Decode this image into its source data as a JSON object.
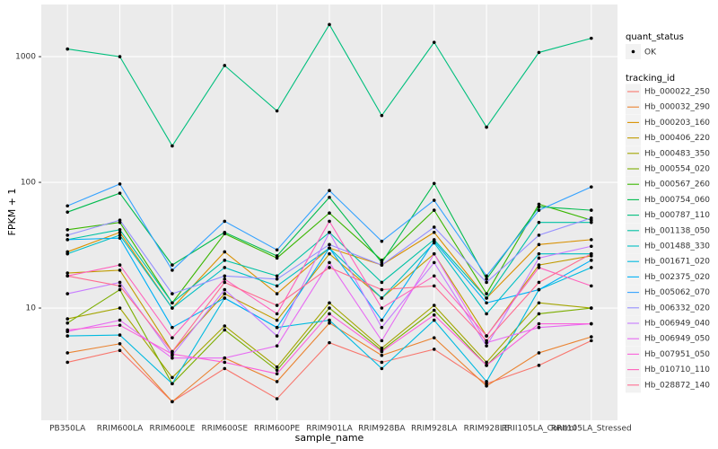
{
  "chart_data": {
    "type": "line",
    "y_scale": "log",
    "grid": true,
    "x_label": "sample_name",
    "y_label": "FPKM + 1",
    "categories": [
      "PB350LA",
      "RRIM600LA",
      "RRIM600LE",
      "RRIM600SE",
      "RRIM600PE",
      "RRIM901LA",
      "RRIM928BA",
      "RRIM928LA",
      "RRIM928LE",
      "RRII105LA_Control",
      "RRII105LA_Stressed"
    ],
    "ylim": [
      1.28,
      2600
    ],
    "yticks": [
      10,
      100,
      1000
    ],
    "point_legend": {
      "title": "quant_status",
      "label": "OK"
    },
    "legend_title": "tracking_id",
    "series": [
      {
        "name": "Hb_000022_250",
        "color": "#F8766D",
        "values": [
          3.7,
          4.6,
          1.8,
          3.3,
          1.9,
          5.3,
          3.7,
          4.7,
          2.5,
          3.5,
          5.5
        ]
      },
      {
        "name": "Hb_000032_290",
        "color": "#EA8331",
        "values": [
          4.4,
          5.2,
          1.8,
          4.0,
          2.6,
          7.6,
          4.2,
          5.8,
          2.4,
          4.4,
          5.9
        ]
      },
      {
        "name": "Hb_000203_160",
        "color": "#D89000",
        "values": [
          28,
          40,
          10,
          28,
          13,
          30,
          22,
          40,
          12,
          32,
          35
        ]
      },
      {
        "name": "Hb_000406_220",
        "color": "#C09B00",
        "values": [
          19,
          20,
          4.5,
          13,
          8,
          27,
          12,
          27,
          6,
          22,
          26
        ]
      },
      {
        "name": "Hb_000483_350",
        "color": "#A3A500",
        "values": [
          8.2,
          10,
          2.8,
          7.2,
          3.4,
          11,
          4.8,
          10.5,
          3.7,
          11,
          10
        ]
      },
      {
        "name": "Hb_000554_020",
        "color": "#7CAE00",
        "values": [
          7.6,
          14,
          2.5,
          6.7,
          3.2,
          10,
          4.6,
          9.6,
          3.5,
          9,
          10
        ]
      },
      {
        "name": "Hb_000567_260",
        "color": "#39B600",
        "values": [
          42,
          48,
          11,
          39,
          25,
          57,
          24,
          60,
          13,
          67,
          50
        ]
      },
      {
        "name": "Hb_000754_060",
        "color": "#00BB4E",
        "values": [
          58,
          82,
          22,
          40,
          26,
          76,
          23,
          98,
          17,
          64,
          60
        ]
      },
      {
        "name": "Hb_000787_110",
        "color": "#00BF7D",
        "values": [
          1150,
          1000,
          195,
          850,
          370,
          1800,
          340,
          1300,
          275,
          1080,
          1400
        ]
      },
      {
        "name": "Hb_001138_050",
        "color": "#00C1A3",
        "values": [
          35,
          42,
          11,
          24,
          18,
          40,
          16,
          35,
          12,
          48,
          48
        ]
      },
      {
        "name": "Hb_001488_330",
        "color": "#00BFC4",
        "values": [
          27,
          38,
          10,
          21,
          15,
          30,
          12,
          33,
          9,
          27,
          27
        ]
      },
      {
        "name": "Hb_001671_020",
        "color": "#00BAE0",
        "values": [
          6,
          6.1,
          2.5,
          12,
          7,
          8,
          3.3,
          8,
          2.6,
          14,
          21
        ]
      },
      {
        "name": "Hb_002375_020",
        "color": "#00B0F6",
        "values": [
          35,
          36,
          7,
          12,
          7,
          30,
          8,
          34,
          11,
          14,
          24
        ]
      },
      {
        "name": "Hb_005062_070",
        "color": "#35A2FF",
        "values": [
          65,
          97,
          20,
          49,
          29,
          86,
          34,
          72,
          18,
          60,
          92
        ]
      },
      {
        "name": "Hb_006332_020",
        "color": "#9590FF",
        "values": [
          38,
          50,
          13,
          18,
          17,
          32,
          22,
          44,
          16,
          38,
          52
        ]
      },
      {
        "name": "Hb_006949_040",
        "color": "#C77CFF",
        "values": [
          13,
          16,
          4.2,
          14,
          6,
          40,
          7,
          23,
          5,
          25,
          31
        ]
      },
      {
        "name": "Hb_006949_050",
        "color": "#E76BF3",
        "values": [
          6.5,
          8,
          4,
          4,
          5,
          23,
          5.5,
          27,
          5.3,
          7,
          7.5
        ]
      },
      {
        "name": "Hb_007951_050",
        "color": "#FA62DB",
        "values": [
          6.7,
          7.3,
          4.3,
          3.7,
          3,
          9,
          4.5,
          8.8,
          3.5,
          7.5,
          7.5
        ]
      },
      {
        "name": "Hb_010710_110",
        "color": "#FF62BC",
        "values": [
          18,
          22,
          5.8,
          17,
          9,
          49,
          10,
          18,
          6,
          21,
          15
        ]
      },
      {
        "name": "Hb_028872_140",
        "color": "#FF6C91",
        "values": [
          18,
          15,
          4.5,
          16,
          10.5,
          21,
          14,
          15,
          5.5,
          16,
          27
        ]
      }
    ]
  }
}
